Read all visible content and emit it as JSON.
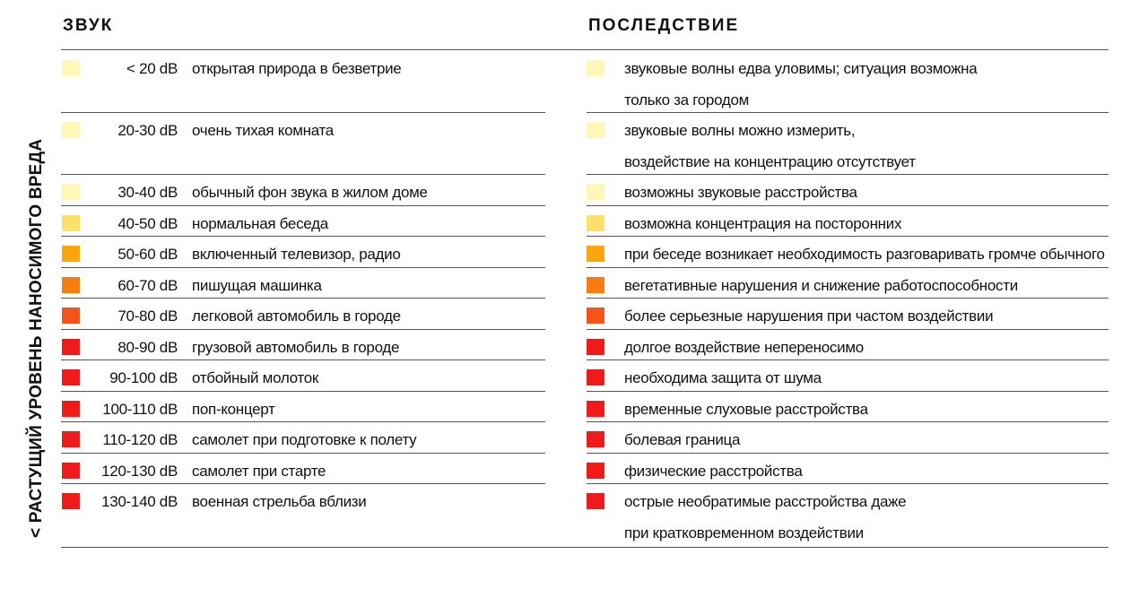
{
  "chart_data": {
    "type": "table",
    "columns": {
      "sound": "ЗВУК",
      "effect": "ПОСЛЕДСТВИЕ"
    },
    "side_label": "< РАСТУЩИЙ УРОВЕНЬ НАНОСИМОГО ВРЕДА",
    "rows": [
      {
        "level": "< 20 dB",
        "source": "открытая природа в безветрие",
        "effect": [
          "звуковые волны едва уловимы; ситуация возможна",
          "только за городом"
        ],
        "color": "#fff7b8"
      },
      {
        "level": "20-30 dB",
        "source": "очень тихая комната",
        "effect": [
          "звуковые волны можно измерить,",
          "воздействие на концентрацию отсутствует"
        ],
        "color": "#fff7b8"
      },
      {
        "level": "30-40 dB",
        "source": "обычный фон звука в жилом доме",
        "effect": [
          "возможны звуковые расстройства"
        ],
        "color": "#fff7b8"
      },
      {
        "level": "40-50 dB",
        "source": "нормальная беседа",
        "effect": [
          "возможна концентрация на посторонних"
        ],
        "color": "#fde06a"
      },
      {
        "level": "50-60 dB",
        "source": "включенный телевизор, радио",
        "effect": [
          "при беседе возникает необходимость разговаривать громче обычного"
        ],
        "color": "#fba60a"
      },
      {
        "level": "60-70 dB",
        "source": "пишущая машинка",
        "effect": [
          "вегетативные нарушения и снижение работоспособности"
        ],
        "color": "#f57d12"
      },
      {
        "level": "70-80 dB",
        "source": "легковой автомобиль в городе",
        "effect": [
          "более серьезные нарушения при частом воздействии"
        ],
        "color": "#f4531a"
      },
      {
        "level": "80-90 dB",
        "source": "грузовой автомобиль в городе",
        "effect": [
          "долгое воздействие непереносимо"
        ],
        "color": "#ef1a1a"
      },
      {
        "level": "90-100 dB",
        "source": "отбойный молоток",
        "effect": [
          "необходима защита от шума"
        ],
        "color": "#ef1a1a"
      },
      {
        "level": "100-110 dB",
        "source": "поп-концерт",
        "effect": [
          "временные слуховые расстройства"
        ],
        "color": "#ef1a1a"
      },
      {
        "level": "110-120 dB",
        "source": "самолет при подготовке к полету",
        "effect": [
          "болевая граница"
        ],
        "color": "#ef1a1a"
      },
      {
        "level": "120-130 dB",
        "source": "самолет при старте",
        "effect": [
          "физические расстройства"
        ],
        "color": "#ef1a1a"
      },
      {
        "level": "130-140 dB",
        "source": "военная стрельба вблизи",
        "effect": [
          "острые необратимые расстройства даже",
          "при кратковременном воздействии"
        ],
        "color": "#ef1a1a"
      }
    ]
  }
}
